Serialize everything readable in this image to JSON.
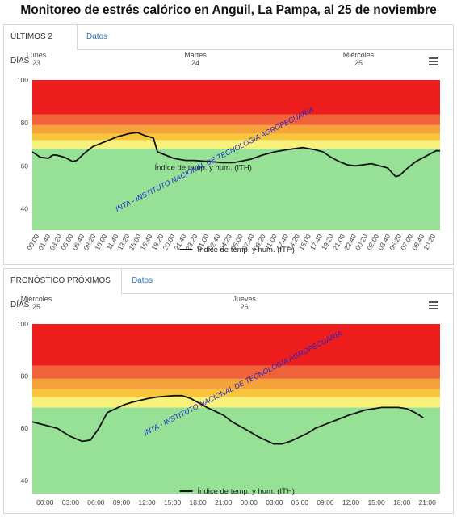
{
  "page": {
    "title": "Monitoreo de estrés calórico en Anguil, La Pampa, al 25 de noviembre"
  },
  "panel1": {
    "tabs": [
      {
        "label": "ÚLTIMOS 2 DÍAS"
      },
      {
        "label": "Datos"
      }
    ],
    "menu_icon": "hamburger-menu-icon"
  },
  "panel2": {
    "tabs": [
      {
        "label": "PRONÓSTICO PRÓXIMOS DÍAS"
      },
      {
        "label": "Datos"
      }
    ],
    "menu_icon": "hamburger-menu-icon"
  },
  "watermark": "INTA - INSTITUTO NACIONAL DE TECNOLOGÍA AGROPECUARIA",
  "colors": {
    "band_green": "#96e196",
    "band_yellow": "#f7f07a",
    "band_orange_light": "#f8c53a",
    "band_orange": "#f6a23a",
    "band_red_light": "#f0623a",
    "band_red": "#ee1d1d",
    "line": "#111111",
    "watermark": "#2222cc",
    "link": "#2f6fb0"
  },
  "chart_data": [
    {
      "type": "line",
      "title": "",
      "xlabel": "",
      "ylabel": "",
      "ylim": [
        30,
        100
      ],
      "yticks": [
        "40",
        "60",
        "80",
        "100"
      ],
      "day_labels": [
        {
          "name": "Lunes",
          "day": "23"
        },
        {
          "name": "Martes",
          "day": "24"
        },
        {
          "name": "Miércoles",
          "day": "25"
        }
      ],
      "xtick_labels": [
        "00:00",
        "01:40",
        "03:20",
        "05:00",
        "06:40",
        "08:20",
        "10:00",
        "11:40",
        "13:20",
        "15:00",
        "16:40",
        "18:20",
        "20:00",
        "21:40",
        "23:20",
        "01:00",
        "02:40",
        "04:20",
        "06:00",
        "07:40",
        "09:20",
        "11:00",
        "12:40",
        "14:20",
        "16:00",
        "17:40",
        "19:20",
        "21:00",
        "22:40",
        "00:20",
        "02:00",
        "03:40",
        "05:20",
        "07:00",
        "08:40",
        "10:20"
      ],
      "bands": [
        {
          "from": 30,
          "to": 68,
          "color": "#96e196"
        },
        {
          "from": 68,
          "to": 72,
          "color": "#f7f07a"
        },
        {
          "from": 72,
          "to": 75,
          "color": "#f8c53a"
        },
        {
          "from": 75,
          "to": 79,
          "color": "#f6a23a"
        },
        {
          "from": 79,
          "to": 84,
          "color": "#f0623a"
        },
        {
          "from": 84,
          "to": 100,
          "color": "#ee1d1d"
        }
      ],
      "series": [
        {
          "name": "Índice de temp. y hum. (ITH)",
          "label_at": "Índice de temp. y hum. (ITH)",
          "points": [
            [
              0,
              66.5
            ],
            [
              2,
              64
            ],
            [
              4,
              63.5
            ],
            [
              5,
              65
            ],
            [
              6,
              65
            ],
            [
              8,
              64
            ],
            [
              10,
              62
            ],
            [
              11,
              62.5
            ],
            [
              13,
              66
            ],
            [
              15,
              69
            ],
            [
              17,
              70.5
            ],
            [
              19,
              72
            ],
            [
              21,
              73.5
            ],
            [
              24,
              75
            ],
            [
              26,
              75.5
            ],
            [
              28,
              74
            ],
            [
              29,
              73.5
            ],
            [
              30,
              73
            ],
            [
              31,
              66.5
            ],
            [
              33,
              65
            ],
            [
              35,
              63.5
            ],
            [
              38,
              62.5
            ],
            [
              40,
              62.5
            ],
            [
              44,
              62
            ],
            [
              47,
              61.5
            ],
            [
              50,
              61.5
            ],
            [
              54,
              63
            ],
            [
              57,
              65
            ],
            [
              60,
              66.5
            ],
            [
              63,
              67.5
            ],
            [
              67,
              68.5
            ],
            [
              70,
              67.5
            ],
            [
              72,
              66.5
            ],
            [
              74,
              64
            ],
            [
              76,
              62
            ],
            [
              78,
              60.5
            ],
            [
              80,
              60
            ],
            [
              82,
              60.5
            ],
            [
              84,
              61
            ],
            [
              86,
              60
            ],
            [
              88,
              59
            ],
            [
              89,
              57
            ],
            [
              90,
              55
            ],
            [
              91,
              55.5
            ],
            [
              93,
              59
            ],
            [
              95,
              62
            ],
            [
              97,
              64
            ],
            [
              99,
              66
            ],
            [
              100,
              67
            ],
            [
              101,
              67
            ]
          ]
        }
      ],
      "legend": "bottom-center"
    },
    {
      "type": "line",
      "title": "",
      "xlabel": "",
      "ylabel": "",
      "ylim": [
        35,
        100
      ],
      "yticks": [
        "40",
        "60",
        "80",
        "100"
      ],
      "day_labels": [
        {
          "name": "Miércoles",
          "day": "25"
        },
        {
          "name": "Jueves",
          "day": "26"
        }
      ],
      "xtick_labels": [
        "00:00",
        "03:00",
        "06:00",
        "09:00",
        "12:00",
        "15:00",
        "18:00",
        "21:00",
        "00:00",
        "03:00",
        "06:00",
        "09:00",
        "12:00",
        "15:00",
        "18:00",
        "21:00"
      ],
      "bands": [
        {
          "from": 35,
          "to": 68,
          "color": "#96e196"
        },
        {
          "from": 68,
          "to": 72,
          "color": "#f7f07a"
        },
        {
          "from": 72,
          "to": 75,
          "color": "#f8c53a"
        },
        {
          "from": 75,
          "to": 79,
          "color": "#f6a23a"
        },
        {
          "from": 79,
          "to": 84,
          "color": "#f0623a"
        },
        {
          "from": 84,
          "to": 100,
          "color": "#ee1d1d"
        }
      ],
      "series": [
        {
          "name": "Índice de temp. y hum. (ITH)",
          "label_at": "Índice de temp. y hum. (ITH)",
          "points": [
            [
              0,
              62.5
            ],
            [
              3,
              60
            ],
            [
              4.5,
              57
            ],
            [
              6,
              55
            ],
            [
              7,
              55.5
            ],
            [
              8,
              60
            ],
            [
              9,
              66
            ],
            [
              11,
              69
            ],
            [
              12,
              70
            ],
            [
              14,
              71.5
            ],
            [
              15,
              72
            ],
            [
              17,
              72.5
            ],
            [
              18,
              72.5
            ],
            [
              19,
              71.5
            ],
            [
              21,
              68
            ],
            [
              23,
              65
            ],
            [
              24,
              62.5
            ],
            [
              26,
              59
            ],
            [
              27,
              57
            ],
            [
              28,
              55.5
            ],
            [
              29,
              54
            ],
            [
              30,
              54
            ],
            [
              31,
              55
            ],
            [
              33,
              58
            ],
            [
              34,
              60
            ],
            [
              36,
              62.5
            ],
            [
              38,
              65
            ],
            [
              40,
              67
            ],
            [
              42,
              68
            ],
            [
              44,
              68
            ],
            [
              45,
              67.5
            ],
            [
              46,
              66
            ],
            [
              47,
              64
            ]
          ]
        }
      ],
      "legend": "bottom-center"
    }
  ]
}
